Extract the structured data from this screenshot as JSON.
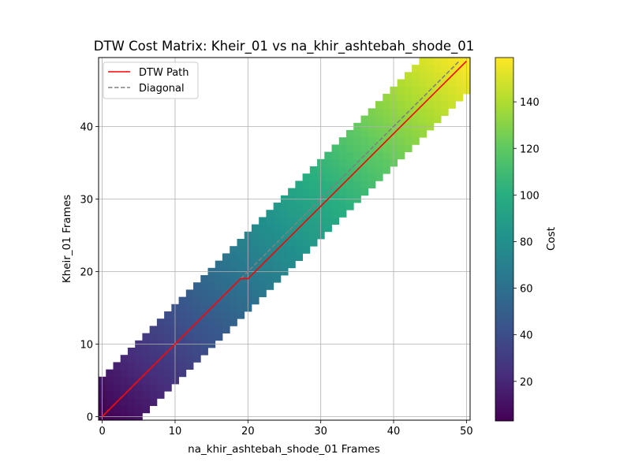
{
  "chart_data": {
    "type": "heatmap",
    "title": "DTW Cost Matrix: Kheir_01 vs na_khir_ashtebah_shode_01",
    "xlabel": "na_khir_ashtebah_shode_01 Frames",
    "ylabel": "Kheir_01 Frames",
    "x_frames": 51,
    "y_frames": 50,
    "band_halfwidth": 5,
    "xlim": [
      -0.5,
      50.5
    ],
    "ylim": [
      -0.5,
      49.5
    ],
    "xticks": [
      0,
      10,
      20,
      30,
      40,
      50
    ],
    "yticks": [
      0,
      10,
      20,
      30,
      40
    ],
    "grid": true,
    "colormap": "viridis",
    "cost_range": [
      3,
      159
    ],
    "colorbar": {
      "label": "Cost",
      "ticks": [
        20,
        40,
        60,
        80,
        100,
        120,
        140
      ]
    },
    "legend": {
      "placement": "top-left",
      "entries": [
        {
          "label": "DTW Path",
          "color": "#ff0000",
          "style": "solid"
        },
        {
          "label": "Diagonal",
          "color": "#808080",
          "style": "dashed"
        }
      ]
    },
    "series": [
      {
        "name": "DTW Path",
        "x": [
          0,
          19,
          20,
          50
        ],
        "y": [
          0,
          19,
          19,
          49
        ]
      },
      {
        "name": "Diagonal",
        "x": [
          0,
          49
        ],
        "y": [
          0,
          49
        ]
      }
    ]
  }
}
